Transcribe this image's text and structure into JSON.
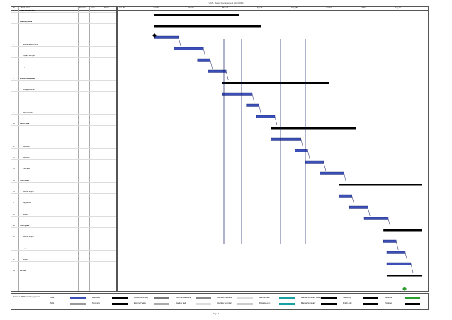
{
  "header": {
    "title": "UAT - Reset Management 2014-03-17",
    "page_label": "Page 1"
  },
  "columns": [
    "ID",
    "Task Name",
    "Duration",
    "Start",
    "Finish"
  ],
  "timescale": [
    "Jan 05",
    "Feb 02",
    "Mar 02",
    "Mar 30",
    "Apr 27",
    "May 25",
    "Jun 22",
    "Jul 20",
    "Aug 17"
  ],
  "rows": [
    {
      "id": "0",
      "name": "Reset Management",
      "summary": true
    },
    {
      "id": "1",
      "name": "Planning Phase",
      "summary": true
    },
    {
      "id": "2",
      "name": "Kickoff",
      "summary": false
    },
    {
      "id": "3",
      "name": "Review requirements",
      "summary": false
    },
    {
      "id": "4",
      "name": "Prepare test plan",
      "summary": false
    },
    {
      "id": "5",
      "name": "Sign off",
      "summary": false
    },
    {
      "id": "6",
      "name": "Environment Setup",
      "summary": true
    },
    {
      "id": "7",
      "name": "Configure servers",
      "summary": false
    },
    {
      "id": "8",
      "name": "Load test data",
      "summary": false
    },
    {
      "id": "9",
      "name": "Verify access",
      "summary": false
    },
    {
      "id": "10",
      "name": "Build Phase",
      "summary": true
    },
    {
      "id": "11",
      "name": "Module A",
      "summary": false
    },
    {
      "id": "12",
      "name": "Module B",
      "summary": false
    },
    {
      "id": "13",
      "name": "Module C",
      "summary": false
    },
    {
      "id": "14",
      "name": "Integration",
      "summary": false
    },
    {
      "id": "15",
      "name": "Test Cycle 1",
      "summary": true
    },
    {
      "id": "16",
      "name": "Execute scripts",
      "summary": false
    },
    {
      "id": "17",
      "name": "Log defects",
      "summary": false
    },
    {
      "id": "18",
      "name": "Retest",
      "summary": false
    },
    {
      "id": "19",
      "name": "Test Cycle 2",
      "summary": true
    },
    {
      "id": "20",
      "name": "Execute scripts",
      "summary": false
    },
    {
      "id": "21",
      "name": "Log defects",
      "summary": false
    },
    {
      "id": "22",
      "name": "Retest",
      "summary": false
    },
    {
      "id": "23",
      "name": "Go-Live",
      "summary": true
    }
  ],
  "legend": {
    "project_text": "Project: UAT Reset Management",
    "items": [
      {
        "label": "Task",
        "color": "#3b4fb8"
      },
      {
        "label": "Split",
        "color": "#999999"
      },
      {
        "label": "Milestone",
        "color": "#000000"
      },
      {
        "label": "Summary",
        "color": "#000000"
      },
      {
        "label": "Project Summary",
        "color": "#777777"
      },
      {
        "label": "External Tasks",
        "color": "#aaaaaa"
      },
      {
        "label": "External Milestone",
        "color": "#888888"
      },
      {
        "label": "Inactive Task",
        "color": "#dddddd"
      },
      {
        "label": "Inactive Milestone",
        "color": "#dddddd"
      },
      {
        "label": "Inactive Summary",
        "color": "#cccccc"
      },
      {
        "label": "Manual Task",
        "color": "#1aa0a0"
      },
      {
        "label": "Duration-only",
        "color": "#1aa0a0"
      },
      {
        "label": "Manual Summary Rollup",
        "color": "#000000"
      },
      {
        "label": "Manual Summary",
        "color": "#000000"
      },
      {
        "label": "Start-only",
        "color": "#000000"
      },
      {
        "label": "Finish-only",
        "color": "#000000"
      },
      {
        "label": "Deadline",
        "color": "#2ca02c"
      },
      {
        "label": "Progress",
        "color": "#000000"
      }
    ]
  }
}
